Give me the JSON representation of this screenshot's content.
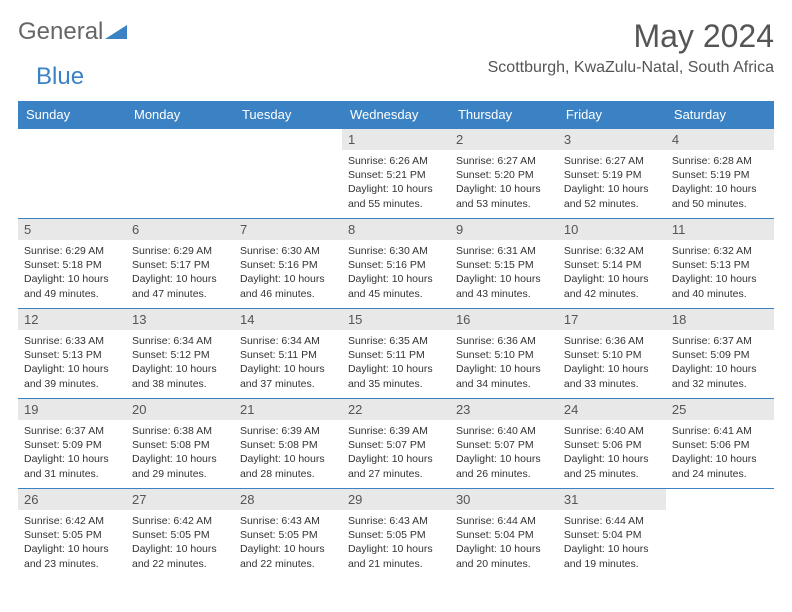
{
  "logo": {
    "text1": "General",
    "text2": "Blue"
  },
  "title": "May 2024",
  "location": "Scottburgh, KwaZulu-Natal, South Africa",
  "colors": {
    "header_bg": "#3b82c4",
    "header_text": "#ffffff",
    "daynum_bg": "#e8e8e8",
    "row_border": "#3b82c4",
    "body_text": "#333333",
    "title_text": "#555555"
  },
  "typography": {
    "title_fontsize": 32,
    "location_fontsize": 16,
    "header_fontsize": 13,
    "detail_fontsize": 10.5
  },
  "weekdays": [
    "Sunday",
    "Monday",
    "Tuesday",
    "Wednesday",
    "Thursday",
    "Friday",
    "Saturday"
  ],
  "weeks": [
    [
      null,
      null,
      null,
      {
        "n": "1",
        "sunrise": "6:26 AM",
        "sunset": "5:21 PM",
        "dl": "10 hours and 55 minutes."
      },
      {
        "n": "2",
        "sunrise": "6:27 AM",
        "sunset": "5:20 PM",
        "dl": "10 hours and 53 minutes."
      },
      {
        "n": "3",
        "sunrise": "6:27 AM",
        "sunset": "5:19 PM",
        "dl": "10 hours and 52 minutes."
      },
      {
        "n": "4",
        "sunrise": "6:28 AM",
        "sunset": "5:19 PM",
        "dl": "10 hours and 50 minutes."
      }
    ],
    [
      {
        "n": "5",
        "sunrise": "6:29 AM",
        "sunset": "5:18 PM",
        "dl": "10 hours and 49 minutes."
      },
      {
        "n": "6",
        "sunrise": "6:29 AM",
        "sunset": "5:17 PM",
        "dl": "10 hours and 47 minutes."
      },
      {
        "n": "7",
        "sunrise": "6:30 AM",
        "sunset": "5:16 PM",
        "dl": "10 hours and 46 minutes."
      },
      {
        "n": "8",
        "sunrise": "6:30 AM",
        "sunset": "5:16 PM",
        "dl": "10 hours and 45 minutes."
      },
      {
        "n": "9",
        "sunrise": "6:31 AM",
        "sunset": "5:15 PM",
        "dl": "10 hours and 43 minutes."
      },
      {
        "n": "10",
        "sunrise": "6:32 AM",
        "sunset": "5:14 PM",
        "dl": "10 hours and 42 minutes."
      },
      {
        "n": "11",
        "sunrise": "6:32 AM",
        "sunset": "5:13 PM",
        "dl": "10 hours and 40 minutes."
      }
    ],
    [
      {
        "n": "12",
        "sunrise": "6:33 AM",
        "sunset": "5:13 PM",
        "dl": "10 hours and 39 minutes."
      },
      {
        "n": "13",
        "sunrise": "6:34 AM",
        "sunset": "5:12 PM",
        "dl": "10 hours and 38 minutes."
      },
      {
        "n": "14",
        "sunrise": "6:34 AM",
        "sunset": "5:11 PM",
        "dl": "10 hours and 37 minutes."
      },
      {
        "n": "15",
        "sunrise": "6:35 AM",
        "sunset": "5:11 PM",
        "dl": "10 hours and 35 minutes."
      },
      {
        "n": "16",
        "sunrise": "6:36 AM",
        "sunset": "5:10 PM",
        "dl": "10 hours and 34 minutes."
      },
      {
        "n": "17",
        "sunrise": "6:36 AM",
        "sunset": "5:10 PM",
        "dl": "10 hours and 33 minutes."
      },
      {
        "n": "18",
        "sunrise": "6:37 AM",
        "sunset": "5:09 PM",
        "dl": "10 hours and 32 minutes."
      }
    ],
    [
      {
        "n": "19",
        "sunrise": "6:37 AM",
        "sunset": "5:09 PM",
        "dl": "10 hours and 31 minutes."
      },
      {
        "n": "20",
        "sunrise": "6:38 AM",
        "sunset": "5:08 PM",
        "dl": "10 hours and 29 minutes."
      },
      {
        "n": "21",
        "sunrise": "6:39 AM",
        "sunset": "5:08 PM",
        "dl": "10 hours and 28 minutes."
      },
      {
        "n": "22",
        "sunrise": "6:39 AM",
        "sunset": "5:07 PM",
        "dl": "10 hours and 27 minutes."
      },
      {
        "n": "23",
        "sunrise": "6:40 AM",
        "sunset": "5:07 PM",
        "dl": "10 hours and 26 minutes."
      },
      {
        "n": "24",
        "sunrise": "6:40 AM",
        "sunset": "5:06 PM",
        "dl": "10 hours and 25 minutes."
      },
      {
        "n": "25",
        "sunrise": "6:41 AM",
        "sunset": "5:06 PM",
        "dl": "10 hours and 24 minutes."
      }
    ],
    [
      {
        "n": "26",
        "sunrise": "6:42 AM",
        "sunset": "5:05 PM",
        "dl": "10 hours and 23 minutes."
      },
      {
        "n": "27",
        "sunrise": "6:42 AM",
        "sunset": "5:05 PM",
        "dl": "10 hours and 22 minutes."
      },
      {
        "n": "28",
        "sunrise": "6:43 AM",
        "sunset": "5:05 PM",
        "dl": "10 hours and 22 minutes."
      },
      {
        "n": "29",
        "sunrise": "6:43 AM",
        "sunset": "5:05 PM",
        "dl": "10 hours and 21 minutes."
      },
      {
        "n": "30",
        "sunrise": "6:44 AM",
        "sunset": "5:04 PM",
        "dl": "10 hours and 20 minutes."
      },
      {
        "n": "31",
        "sunrise": "6:44 AM",
        "sunset": "5:04 PM",
        "dl": "10 hours and 19 minutes."
      },
      null
    ]
  ],
  "labels": {
    "sunrise": "Sunrise:",
    "sunset": "Sunset:",
    "daylight": "Daylight:"
  }
}
